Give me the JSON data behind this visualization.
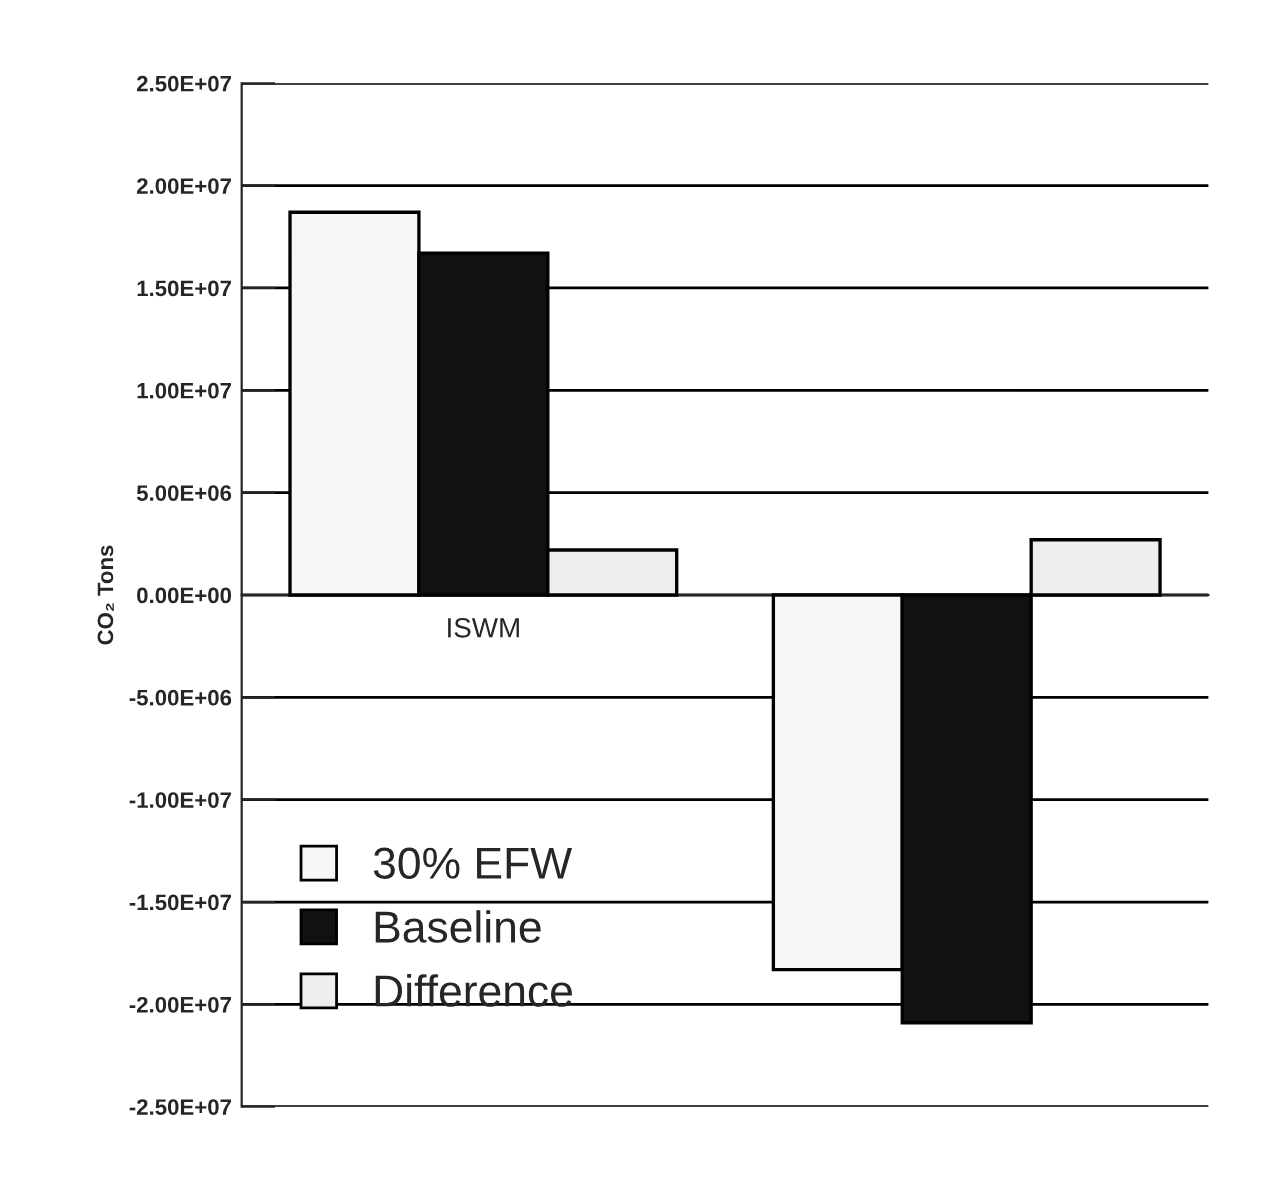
{
  "chart_data": {
    "type": "bar",
    "ylabel": "CO₂ Tons",
    "categories": [
      "ISWM",
      null
    ],
    "series": [
      {
        "name": "30% EFW",
        "color": "#f7f7f7",
        "values": [
          18700000,
          -18300000
        ]
      },
      {
        "name": "Baseline",
        "color": "#111111",
        "values": [
          16700000,
          -20900000
        ]
      },
      {
        "name": "Difference",
        "color": "#eeeeee",
        "values": [
          2200000,
          2700000
        ]
      }
    ],
    "ylim": [
      -25000000,
      25000000
    ],
    "yticks": [
      {
        "value": -25000000,
        "label": "-2.50E+07"
      },
      {
        "value": -20000000,
        "label": "-2.00E+07"
      },
      {
        "value": -15000000,
        "label": "-1.50E+07"
      },
      {
        "value": -10000000,
        "label": "-1.00E+07"
      },
      {
        "value": -5000000,
        "label": "-5.00E+06"
      },
      {
        "value": 0,
        "label": "0.00E+00"
      },
      {
        "value": 5000000,
        "label": "5.00E+06"
      },
      {
        "value": 10000000,
        "label": "1.00E+07"
      },
      {
        "value": 15000000,
        "label": "1.50E+07"
      },
      {
        "value": 20000000,
        "label": "2.00E+07"
      },
      {
        "value": 25000000,
        "label": "2.50E+07"
      }
    ],
    "grid": "y",
    "legend": "bottom left"
  }
}
